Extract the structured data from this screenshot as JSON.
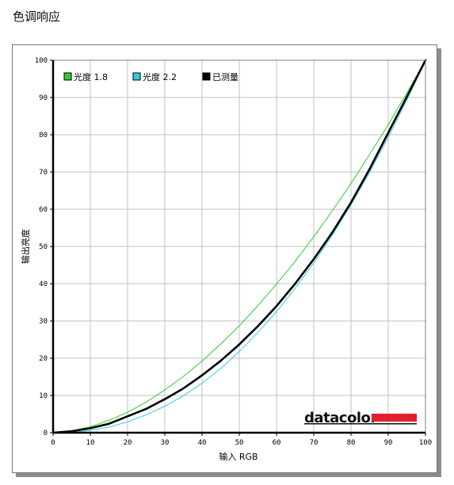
{
  "page": {
    "title": "色调响应"
  },
  "logo": {
    "text": "datacolor",
    "bar_color": "#e0202e"
  },
  "colors": {
    "gamma18": "#33cc33",
    "gamma22": "#33ccdd",
    "measured": "#000000",
    "grid": "#c0c0c0"
  },
  "chart_data": {
    "type": "line",
    "title": "色调响应",
    "xlabel": "输入 RGB",
    "ylabel": "输出亮度",
    "xlim": [
      0,
      100
    ],
    "ylim": [
      0,
      100
    ],
    "xticks": [
      0,
      10,
      20,
      30,
      40,
      50,
      60,
      70,
      80,
      90,
      100
    ],
    "yticks": [
      0,
      10,
      20,
      30,
      40,
      50,
      60,
      70,
      80,
      90,
      100
    ],
    "grid": true,
    "legend_position": "top-left",
    "series": [
      {
        "name": "光度 1.8",
        "color": "#33cc33",
        "x": [
          0,
          5,
          10,
          15,
          20,
          25,
          30,
          35,
          40,
          45,
          50,
          55,
          60,
          65,
          70,
          75,
          80,
          85,
          90,
          95,
          100
        ],
        "y": [
          0,
          0.5,
          1.6,
          3.3,
          5.5,
          8.2,
          11.5,
          15.1,
          19.2,
          23.8,
          28.7,
          34.1,
          39.9,
          46,
          52.6,
          59.6,
          66.9,
          74.7,
          82.7,
          91.2,
          100
        ]
      },
      {
        "name": "光度 2.2",
        "color": "#33ccdd",
        "x": [
          0,
          5,
          10,
          15,
          20,
          25,
          30,
          35,
          40,
          45,
          50,
          55,
          60,
          65,
          70,
          75,
          80,
          85,
          90,
          95,
          100
        ],
        "y": [
          0,
          0.1,
          0.6,
          1.5,
          2.9,
          4.8,
          7.1,
          9.9,
          13.3,
          17.2,
          21.8,
          26.9,
          32.5,
          38.8,
          45.6,
          53.1,
          61.2,
          69.9,
          79.3,
          89.3,
          100
        ]
      },
      {
        "name": "已测量",
        "color": "#000000",
        "x": [
          0,
          5,
          10,
          15,
          20,
          25,
          30,
          35,
          40,
          45,
          50,
          55,
          60,
          65,
          70,
          75,
          80,
          85,
          90,
          95,
          100
        ],
        "y": [
          0,
          0.4,
          1.2,
          2.4,
          4.4,
          6.4,
          9,
          11.9,
          15.4,
          19.3,
          23.7,
          28.6,
          34,
          40,
          46.6,
          53.8,
          61.8,
          70.8,
          80.5,
          90.2,
          100
        ]
      }
    ]
  }
}
